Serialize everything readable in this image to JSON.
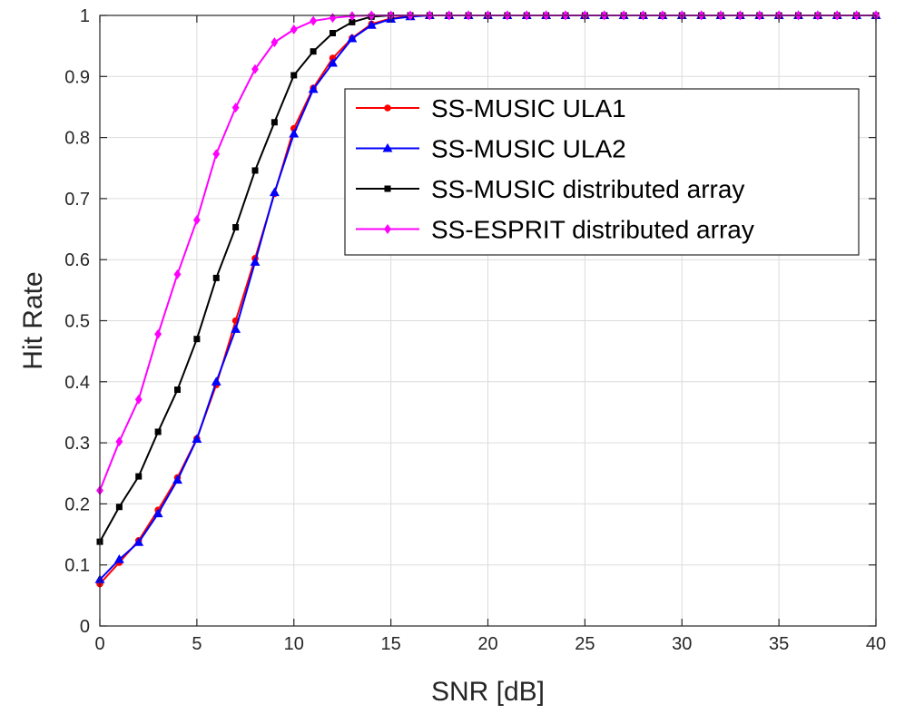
{
  "chart_data": {
    "type": "line",
    "title": "",
    "xlabel": "SNR [dB]",
    "ylabel": "Hit Rate",
    "xlim": [
      0,
      40
    ],
    "ylim": [
      0,
      1
    ],
    "xticks": [
      0,
      5,
      10,
      15,
      20,
      25,
      30,
      35,
      40
    ],
    "yticks": [
      0,
      0.1,
      0.2,
      0.3,
      0.4,
      0.5,
      0.6,
      0.7,
      0.8,
      0.9,
      1
    ],
    "grid": true,
    "legend_position": "top-right",
    "x": [
      0,
      1,
      2,
      3,
      4,
      5,
      6,
      7,
      8,
      9,
      10,
      11,
      12,
      13,
      14,
      15,
      16,
      17,
      18,
      19,
      20,
      21,
      22,
      23,
      24,
      25,
      26,
      27,
      28,
      29,
      30,
      31,
      32,
      33,
      34,
      35,
      36,
      37,
      38,
      39,
      40
    ],
    "series": [
      {
        "name": "SS-MUSIC ULA1",
        "color": "#ff0000",
        "marker": "circle",
        "values": [
          0.069,
          0.104,
          0.14,
          0.19,
          0.243,
          0.307,
          0.395,
          0.5,
          0.602,
          0.708,
          0.815,
          0.881,
          0.93,
          0.963,
          0.986,
          0.995,
          0.999,
          1,
          1,
          1,
          1,
          1,
          1,
          1,
          1,
          1,
          1,
          1,
          1,
          1,
          1,
          1,
          1,
          1,
          1,
          1,
          1,
          1,
          1,
          1,
          1
        ]
      },
      {
        "name": "SS-MUSIC ULA2",
        "color": "#0000ff",
        "marker": "triangle",
        "values": [
          0.076,
          0.109,
          0.137,
          0.184,
          0.239,
          0.306,
          0.4,
          0.486,
          0.596,
          0.71,
          0.806,
          0.879,
          0.922,
          0.962,
          0.984,
          0.994,
          0.998,
          1,
          1,
          1,
          1,
          1,
          1,
          1,
          1,
          1,
          1,
          1,
          1,
          1,
          1,
          1,
          1,
          1,
          1,
          1,
          1,
          1,
          1,
          1,
          1
        ]
      },
      {
        "name": "SS-MUSIC distributed array",
        "color": "#000000",
        "marker": "square",
        "values": [
          0.138,
          0.195,
          0.245,
          0.318,
          0.387,
          0.47,
          0.57,
          0.653,
          0.746,
          0.825,
          0.902,
          0.941,
          0.971,
          0.989,
          0.998,
          1,
          1,
          1,
          1,
          1,
          1,
          1,
          1,
          1,
          1,
          1,
          1,
          1,
          1,
          1,
          1,
          1,
          1,
          1,
          1,
          1,
          1,
          1,
          1,
          1,
          1
        ]
      },
      {
        "name": "SS-ESPRIT distributed array",
        "color": "#ff00ff",
        "marker": "diamond",
        "values": [
          0.222,
          0.302,
          0.371,
          0.478,
          0.576,
          0.665,
          0.773,
          0.849,
          0.912,
          0.956,
          0.977,
          0.991,
          0.996,
          0.999,
          1,
          1,
          1,
          1,
          1,
          1,
          1,
          1,
          1,
          1,
          1,
          1,
          1,
          1,
          1,
          1,
          1,
          1,
          1,
          1,
          1,
          1,
          1,
          1,
          1,
          1,
          1
        ]
      }
    ]
  }
}
